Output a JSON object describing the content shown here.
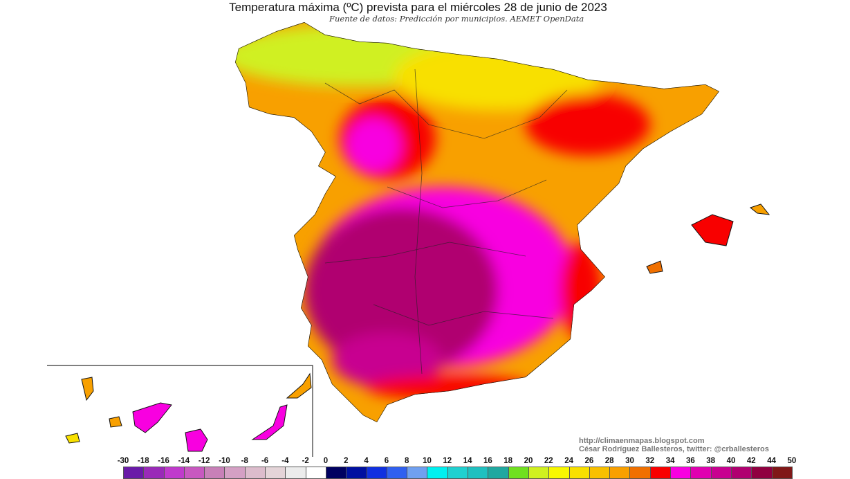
{
  "title": "Temperatura máxima (ºC) prevista para el miércoles 28 de junio de 2023",
  "subtitle": "Fuente de datos: Predicción por municipios. AEMET OpenData",
  "credits": {
    "url": "http://climaenmapas.blogspot.com",
    "author": "César Rodríguez Ballesteros, twitter: @crballesteros"
  },
  "legend": {
    "unit": "ºC",
    "labels": [
      "-30",
      "-18",
      "-16",
      "-14",
      "-12",
      "-10",
      "-8",
      "-6",
      "-4",
      "-2",
      "0",
      "2",
      "4",
      "6",
      "8",
      "10",
      "12",
      "14",
      "16",
      "18",
      "20",
      "22",
      "24",
      "26",
      "28",
      "30",
      "32",
      "34",
      "36",
      "38",
      "40",
      "42",
      "44",
      "50"
    ],
    "colors": [
      "#6a1aa8",
      "#9a2ab8",
      "#c03acc",
      "#c858c0",
      "#c880b8",
      "#d4a0c4",
      "#dcbccc",
      "#e4d4d8",
      "#ececec",
      "#ffffff",
      "#000060",
      "#0010a0",
      "#1030e0",
      "#3060f0",
      "#70a0f0",
      "#00f0f0",
      "#20d0d0",
      "#20c0c0",
      "#20a8a0",
      "#70e020",
      "#d0f020",
      "#f8f800",
      "#f8e000",
      "#f8c000",
      "#f8a000",
      "#f07000",
      "#f80000",
      "#f800e0",
      "#e000b0",
      "#c80090",
      "#b00070",
      "#900040",
      "#801818"
    ]
  },
  "map": {
    "region": "Spain",
    "inset": "Canary Islands",
    "dominant_colors": {
      "north_coast": "#d0f020",
      "north_interior": "#f8a000",
      "center_south": "#b00070",
      "south_east": "#f800e0",
      "hotspots": "#f80000"
    }
  }
}
